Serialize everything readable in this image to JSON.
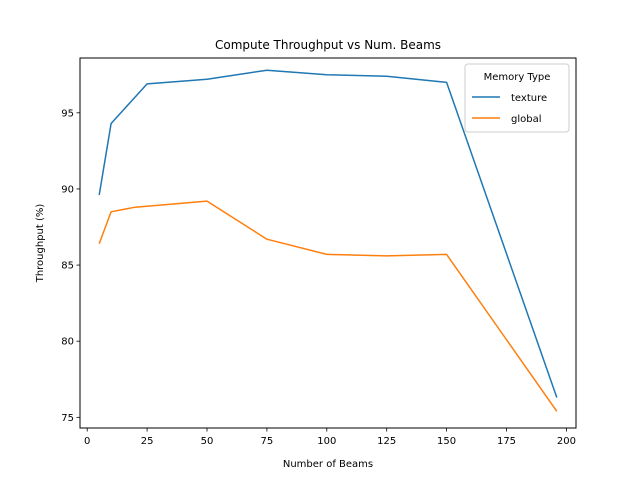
{
  "chart_data": {
    "type": "line",
    "title": "Compute Throughput vs Num. Beams",
    "xlabel": "Number of Beams",
    "ylabel": "Throughput (%)",
    "xlim": [
      -3,
      204
    ],
    "ylim": [
      74.3,
      98.6
    ],
    "xticks": [
      0,
      25,
      50,
      75,
      100,
      125,
      150,
      175,
      200
    ],
    "yticks": [
      75,
      80,
      85,
      90,
      95
    ],
    "legend": {
      "title": "Memory Type",
      "position": "top-right"
    },
    "series": [
      {
        "name": "texture",
        "color": "#1f77b4",
        "x": [
          5,
          10,
          25,
          50,
          75,
          100,
          125,
          150,
          196
        ],
        "y": [
          89.6,
          94.3,
          96.9,
          97.2,
          97.8,
          97.5,
          97.4,
          97.0,
          76.3
        ]
      },
      {
        "name": "global",
        "color": "#ff7f0e",
        "x": [
          5,
          10,
          20,
          50,
          75,
          100,
          125,
          150,
          196
        ],
        "y": [
          86.4,
          88.5,
          88.8,
          89.2,
          86.7,
          85.7,
          85.6,
          85.7,
          75.4
        ]
      }
    ]
  }
}
